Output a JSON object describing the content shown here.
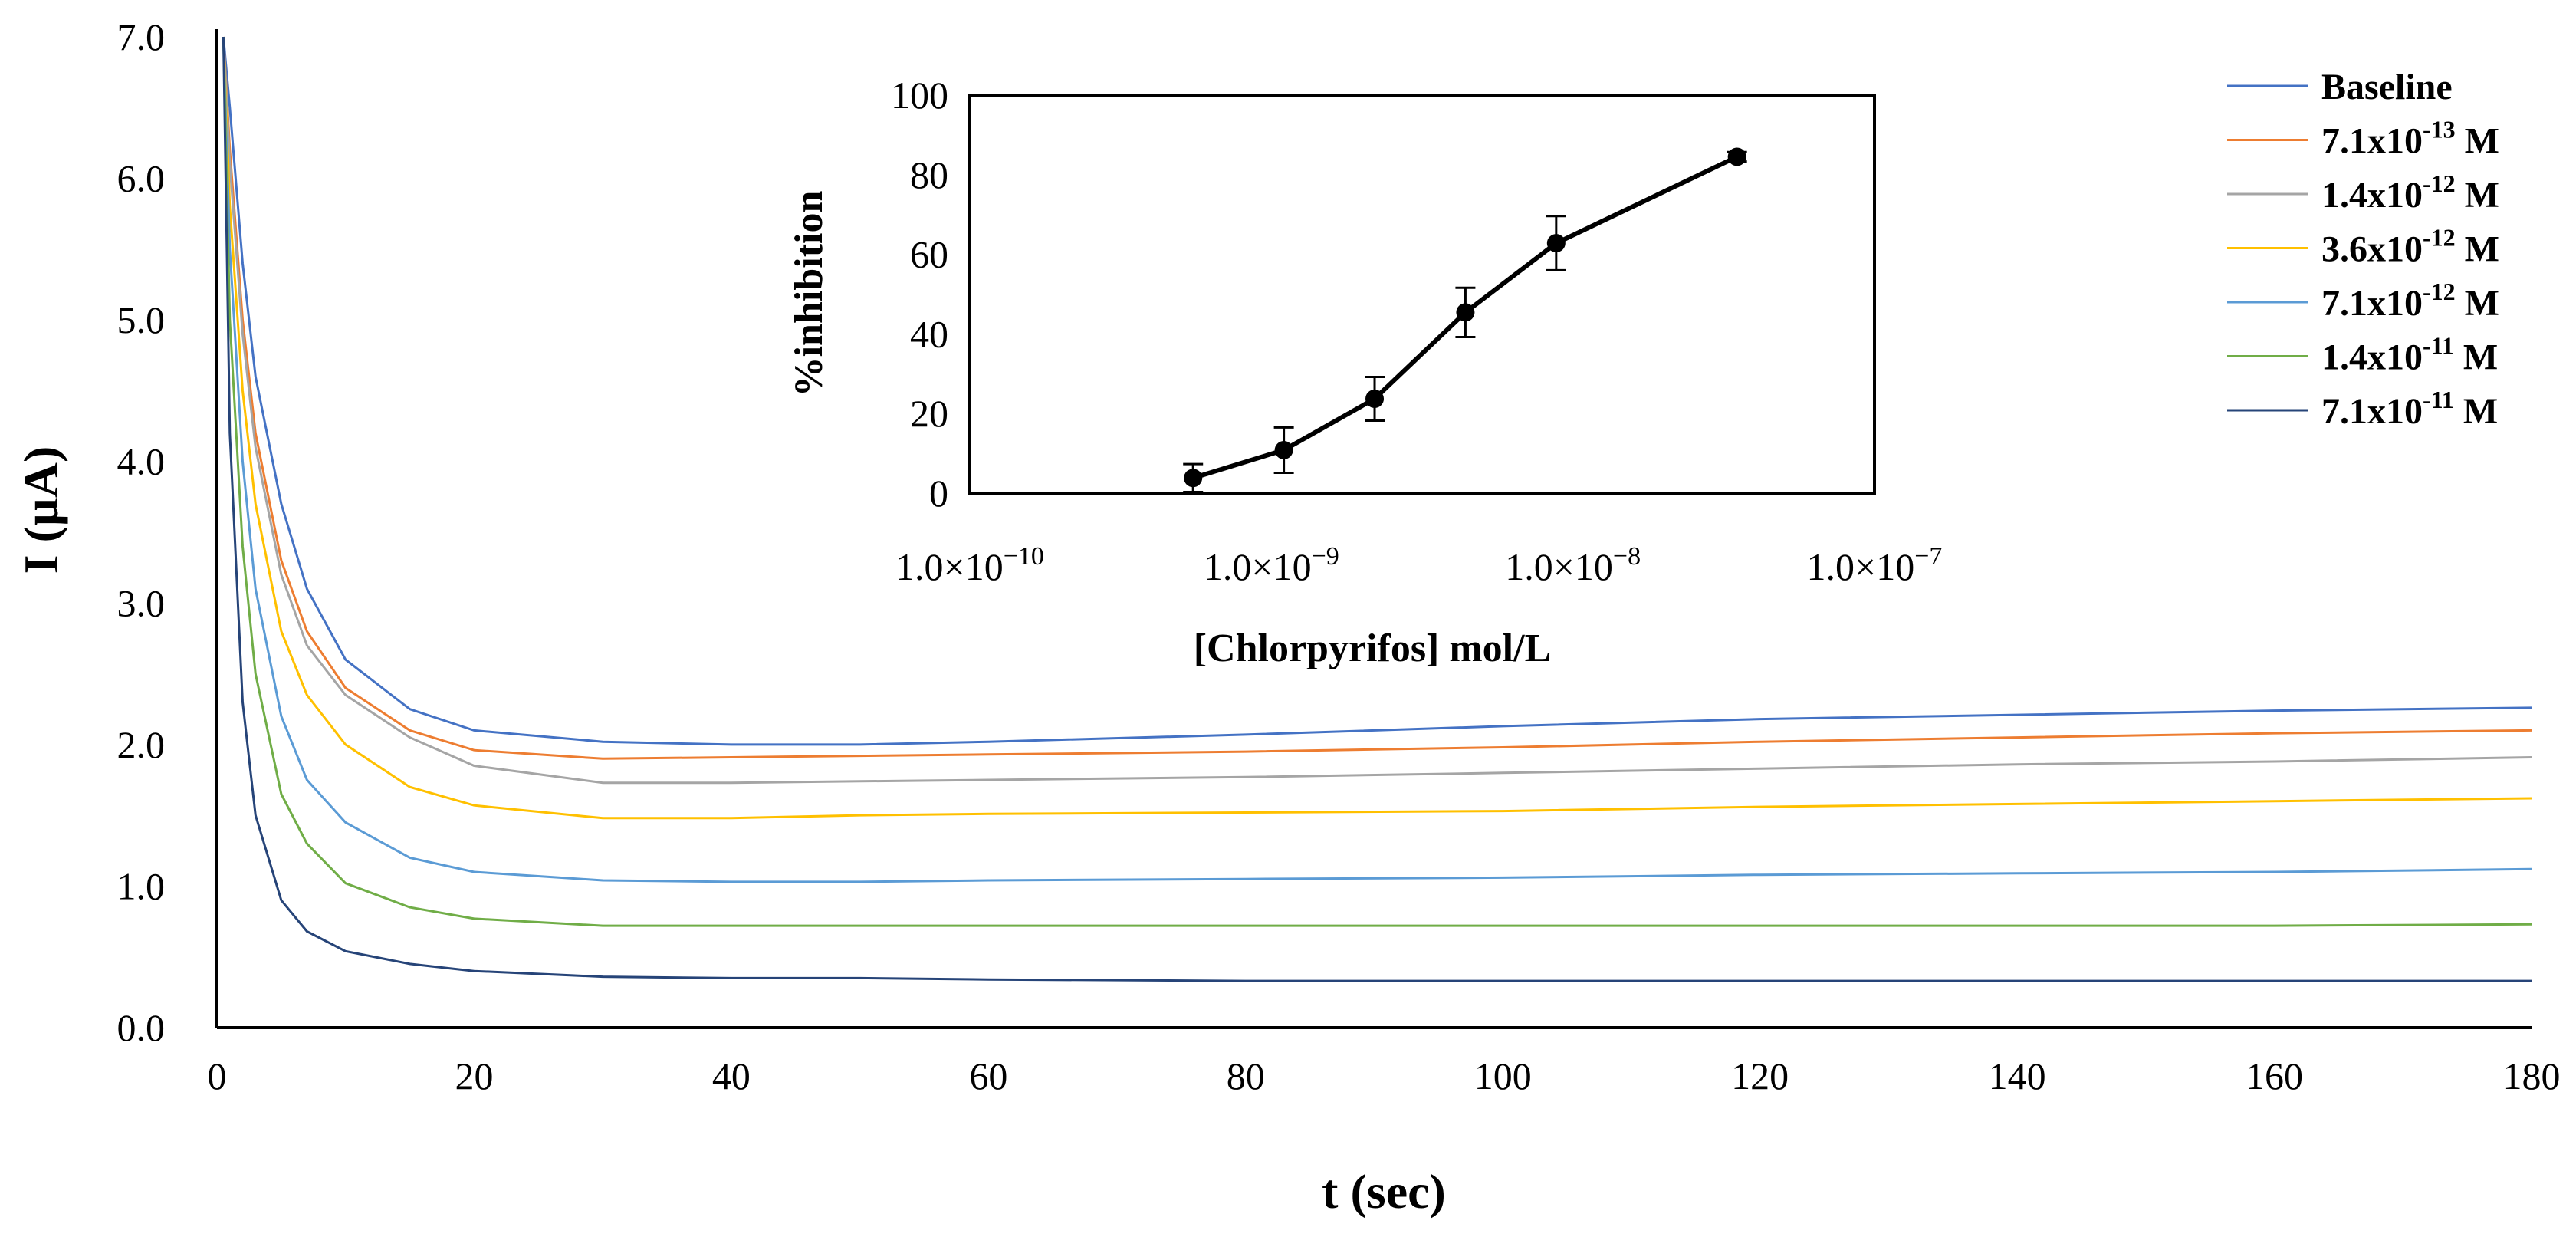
{
  "chart_data": [
    {
      "type": "line",
      "id": "main",
      "title": "",
      "xlabel": "t (sec)",
      "ylabel": "I (µA)",
      "xlim": [
        0,
        180
      ],
      "ylim": [
        0,
        7
      ],
      "xticks": [
        0,
        20,
        40,
        60,
        80,
        100,
        120,
        140,
        160,
        180
      ],
      "yticks": [
        0,
        1,
        2,
        3,
        4,
        5,
        6,
        7
      ],
      "ytick_labels": [
        "0.0",
        "1.0",
        "2.0",
        "3.0",
        "4.0",
        "5.0",
        "6.0",
        "7.0"
      ],
      "legend_position": "top-right",
      "series": [
        {
          "name": "Baseline",
          "color": "#4472C4",
          "x": [
            0.5,
            1,
            2,
            3,
            5,
            7,
            10,
            15,
            20,
            30,
            40,
            50,
            60,
            80,
            100,
            120,
            140,
            160,
            180
          ],
          "y": [
            7.0,
            6.5,
            5.4,
            4.6,
            3.7,
            3.1,
            2.6,
            2.25,
            2.1,
            2.02,
            2.0,
            2.0,
            2.02,
            2.07,
            2.13,
            2.18,
            2.21,
            2.24,
            2.26
          ]
        },
        {
          "name": "7.1x10",
          "exp": "-13",
          "unit": " M",
          "color": "#ED7D31",
          "x": [
            0.5,
            1,
            2,
            3,
            5,
            7,
            10,
            15,
            20,
            30,
            40,
            50,
            60,
            80,
            100,
            120,
            140,
            160,
            180
          ],
          "y": [
            7.0,
            6.2,
            5.0,
            4.2,
            3.3,
            2.8,
            2.4,
            2.1,
            1.96,
            1.9,
            1.91,
            1.92,
            1.93,
            1.95,
            1.98,
            2.02,
            2.05,
            2.08,
            2.1
          ]
        },
        {
          "name": "1.4x10",
          "exp": "-12",
          "unit": " M",
          "color": "#A5A5A5",
          "x": [
            0.5,
            1,
            2,
            3,
            5,
            7,
            10,
            15,
            20,
            30,
            40,
            50,
            60,
            80,
            100,
            120,
            140,
            160,
            180
          ],
          "y": [
            7.0,
            6.1,
            4.9,
            4.1,
            3.2,
            2.7,
            2.35,
            2.05,
            1.85,
            1.73,
            1.73,
            1.74,
            1.75,
            1.77,
            1.8,
            1.83,
            1.86,
            1.88,
            1.91
          ]
        },
        {
          "name": "3.6x10",
          "exp": "-12",
          "unit": " M",
          "color": "#FFC000",
          "x": [
            0.5,
            1,
            2,
            3,
            5,
            7,
            10,
            15,
            20,
            30,
            40,
            50,
            60,
            80,
            100,
            120,
            140,
            160,
            180
          ],
          "y": [
            7.0,
            5.8,
            4.5,
            3.7,
            2.8,
            2.35,
            2.0,
            1.7,
            1.57,
            1.48,
            1.48,
            1.5,
            1.51,
            1.52,
            1.53,
            1.56,
            1.58,
            1.6,
            1.62
          ]
        },
        {
          "name": "7.1x10",
          "exp": "-12",
          "unit": " M",
          "color": "#5B9BD5",
          "x": [
            0.5,
            1,
            2,
            3,
            5,
            7,
            10,
            15,
            20,
            30,
            40,
            50,
            60,
            80,
            100,
            120,
            140,
            160,
            180
          ],
          "y": [
            7.0,
            5.5,
            4.0,
            3.1,
            2.2,
            1.75,
            1.45,
            1.2,
            1.1,
            1.04,
            1.03,
            1.03,
            1.04,
            1.05,
            1.06,
            1.08,
            1.09,
            1.1,
            1.12
          ]
        },
        {
          "name": "1.4x10",
          "exp": "-11",
          "unit": " M",
          "color": "#70AD47",
          "x": [
            0.5,
            1,
            2,
            3,
            5,
            7,
            10,
            15,
            20,
            30,
            40,
            50,
            60,
            80,
            100,
            120,
            140,
            160,
            180
          ],
          "y": [
            7.0,
            5.0,
            3.4,
            2.5,
            1.65,
            1.3,
            1.02,
            0.85,
            0.77,
            0.72,
            0.72,
            0.72,
            0.72,
            0.72,
            0.72,
            0.72,
            0.72,
            0.72,
            0.73
          ]
        },
        {
          "name": "7.1x10",
          "exp": "-11",
          "unit": " M",
          "color": "#264478",
          "x": [
            0.5,
            1,
            2,
            3,
            5,
            7,
            10,
            15,
            20,
            30,
            40,
            50,
            60,
            80,
            100,
            120,
            140,
            160,
            180
          ],
          "y": [
            7.0,
            4.2,
            2.3,
            1.5,
            0.9,
            0.68,
            0.54,
            0.45,
            0.4,
            0.36,
            0.35,
            0.35,
            0.34,
            0.33,
            0.33,
            0.33,
            0.33,
            0.33,
            0.33
          ]
        }
      ]
    },
    {
      "type": "line",
      "id": "inset",
      "xscale": "log",
      "xlabel": "[Chlorpyrifos] mol/L",
      "ylabel": "%inhibition",
      "xlim": [
        1e-10,
        1e-07
      ],
      "ylim": [
        0,
        100
      ],
      "xtick_values": [
        1e-10,
        1e-09,
        1e-08,
        1e-07
      ],
      "xtick_base": "1.0×10",
      "xtick_exps": [
        "−10",
        "−9",
        "−8",
        "−7"
      ],
      "yticks": [
        0,
        20,
        40,
        60,
        80,
        100
      ],
      "marker": "circle",
      "color": "#000000",
      "series": [
        {
          "name": "%inhibition",
          "x": [
            5.5e-10,
            1.1e-09,
            2.2e-09,
            4.4e-09,
            8.8e-09,
            3.5e-08
          ],
          "y": [
            3.8,
            10.8,
            23.7,
            45.4,
            62.8,
            84.5
          ],
          "err": [
            3.5,
            5.7,
            5.5,
            6.2,
            6.8,
            1.2
          ]
        }
      ]
    }
  ]
}
